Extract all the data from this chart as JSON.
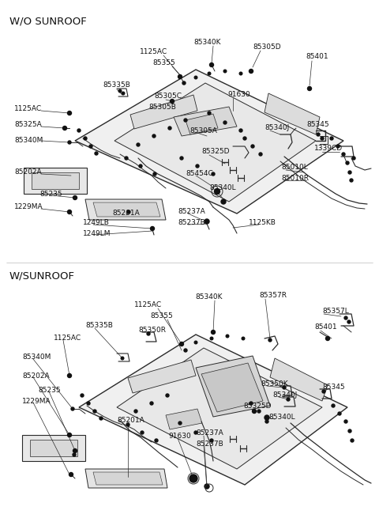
{
  "bg_color": "#ffffff",
  "lc": "#2a2a2a",
  "fig_width": 4.8,
  "fig_height": 6.55,
  "dpi": 100,
  "section1_title": "W/O SUNROOF",
  "section2_title": "W/SUNROOF",
  "s1_labels": [
    [
      "1125AC",
      195,
      68,
      "center"
    ],
    [
      "85340K",
      263,
      57,
      "center"
    ],
    [
      "85305D",
      328,
      62,
      "left"
    ],
    [
      "85401",
      388,
      75,
      "left"
    ],
    [
      "85355",
      217,
      82,
      "center"
    ],
    [
      "85335B",
      132,
      112,
      "left"
    ],
    [
      "85305C",
      200,
      124,
      "left"
    ],
    [
      "91630",
      293,
      124,
      "left"
    ],
    [
      "1125AC",
      30,
      140,
      "left"
    ],
    [
      "85305B",
      196,
      138,
      "left"
    ],
    [
      "85325A",
      30,
      162,
      "left"
    ],
    [
      "85340M",
      30,
      182,
      "left"
    ],
    [
      "85305A",
      248,
      169,
      "left"
    ],
    [
      "85340J",
      338,
      165,
      "left"
    ],
    [
      "85345",
      390,
      162,
      "left"
    ],
    [
      "85325D",
      263,
      195,
      "left"
    ],
    [
      "1339CD",
      396,
      192,
      "left"
    ],
    [
      "85202A",
      20,
      222,
      "left"
    ],
    [
      "85454C",
      240,
      222,
      "left"
    ],
    [
      "85010L",
      360,
      215,
      "left"
    ],
    [
      "85010R",
      360,
      228,
      "left"
    ],
    [
      "85235",
      55,
      248,
      "left"
    ],
    [
      "85340L",
      270,
      241,
      "left"
    ],
    [
      "1229MA",
      30,
      265,
      "left"
    ],
    [
      "85201A",
      148,
      272,
      "left"
    ],
    [
      "85237A",
      230,
      270,
      "left"
    ],
    [
      "85237B",
      230,
      283,
      "left"
    ],
    [
      "1249LB",
      110,
      283,
      "left"
    ],
    [
      "1249LM",
      110,
      296,
      "left"
    ],
    [
      "1125KB",
      320,
      285,
      "left"
    ]
  ],
  "s2_labels": [
    [
      "1125AC",
      195,
      390,
      "center"
    ],
    [
      "85340K",
      270,
      380,
      "center"
    ],
    [
      "85357R",
      330,
      378,
      "left"
    ],
    [
      "85355",
      213,
      405,
      "center"
    ],
    [
      "85335B",
      110,
      416,
      "left"
    ],
    [
      "85350R",
      178,
      420,
      "left"
    ],
    [
      "85357L",
      410,
      397,
      "left"
    ],
    [
      "1125AC",
      75,
      432,
      "left"
    ],
    [
      "85401",
      400,
      418,
      "left"
    ],
    [
      "85340M",
      35,
      455,
      "left"
    ],
    [
      "85202A",
      35,
      478,
      "left"
    ],
    [
      "85235",
      55,
      496,
      "left"
    ],
    [
      "1229MA",
      35,
      510,
      "left"
    ],
    [
      "85350K",
      335,
      488,
      "left"
    ],
    [
      "85340J",
      348,
      502,
      "left"
    ],
    [
      "85345",
      410,
      492,
      "left"
    ],
    [
      "85325D",
      313,
      517,
      "left"
    ],
    [
      "85201A",
      152,
      535,
      "left"
    ],
    [
      "85340L",
      342,
      530,
      "left"
    ],
    [
      "91630",
      218,
      555,
      "left"
    ],
    [
      "85237A",
      252,
      551,
      "left"
    ],
    [
      "85237B",
      252,
      563,
      "left"
    ]
  ]
}
